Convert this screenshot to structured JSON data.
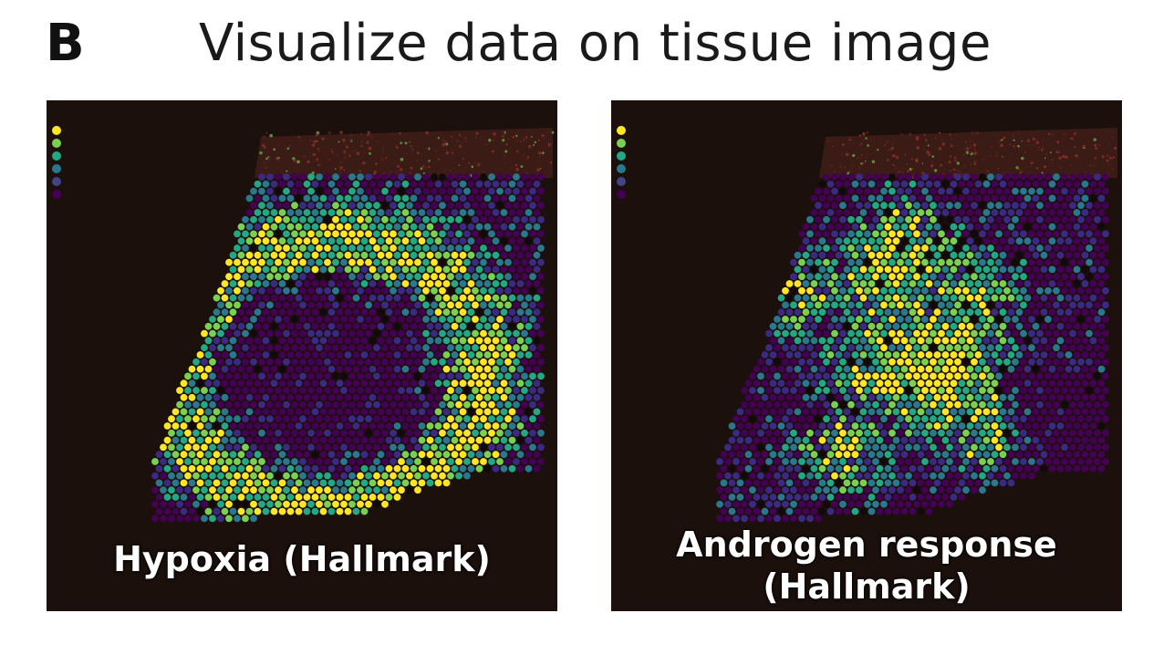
{
  "figure": {
    "panel_letter": "B",
    "title": "Visualize data on tissue image"
  },
  "panels": [
    {
      "caption_lines": [
        "Hypoxia (Hallmark)"
      ],
      "legend_colors": [
        "#fde725",
        "#7ad151",
        "#22a884",
        "#2a788e",
        "#414487",
        "#440154"
      ]
    },
    {
      "caption_lines": [
        "Androgen response",
        "(Hallmark)"
      ],
      "legend_colors": [
        "#fde725",
        "#7ad151",
        "#22a884",
        "#2a788e",
        "#414487",
        "#440154"
      ]
    }
  ],
  "colors": {
    "background": "#1b100c",
    "viridis": [
      "#440154",
      "#3b2a84",
      "#2a788e",
      "#22a884",
      "#7ad151",
      "#fde725"
    ]
  }
}
